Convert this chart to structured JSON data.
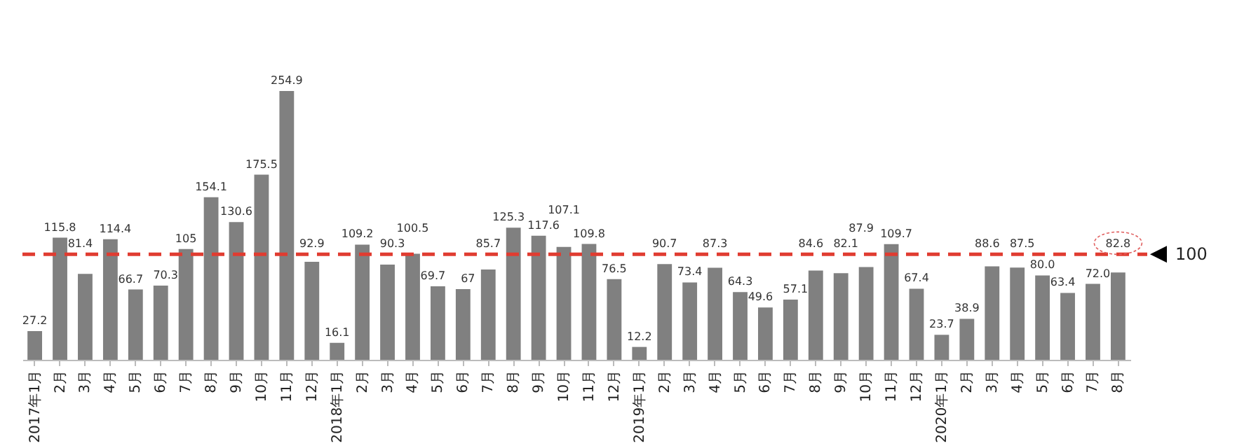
{
  "chart_data": {
    "type": "bar",
    "categories": [
      "2017年1月",
      "2月",
      "3月",
      "4月",
      "5月",
      "6月",
      "7月",
      "8月",
      "9月",
      "10月",
      "11月",
      "12月",
      "2018年1月",
      "2月",
      "3月",
      "4月",
      "5月",
      "6月",
      "7月",
      "8月",
      "9月",
      "10月",
      "11月",
      "12月",
      "2019年1月",
      "2月",
      "3月",
      "4月",
      "5月",
      "6月",
      "7月",
      "8月",
      "9月",
      "10月",
      "11月",
      "12月",
      "2020年1月",
      "2月",
      "3月",
      "4月",
      "5月",
      "6月",
      "7月",
      "8月"
    ],
    "values": [
      27.2,
      115.8,
      81.4,
      114.4,
      66.7,
      70.3,
      105,
      154.1,
      130.6,
      175.5,
      254.9,
      92.9,
      16.1,
      109.2,
      90.3,
      100.5,
      69.7,
      67,
      85.7,
      125.3,
      117.6,
      107.1,
      109.8,
      76.5,
      12.2,
      90.7,
      73.4,
      87.3,
      64.3,
      49.6,
      57.1,
      84.6,
      82.1,
      87.9,
      109.7,
      67.4,
      23.7,
      38.9,
      88.6,
      87.5,
      80.0,
      63.4,
      72.0,
      82.8
    ],
    "value_labels": [
      "27.2",
      "115.8",
      "81.4",
      "114.4",
      "66.7",
      "70.3",
      "105",
      "154.1",
      "130.6",
      "175.5",
      "254.9",
      "92.9",
      "16.1",
      "109.2",
      "90.3",
      "100.5",
      "69.7",
      "67",
      "85.7",
      "125.3",
      "117.6",
      "107.1",
      "109.8",
      "76.5",
      "12.2",
      "90.7",
      "73.4",
      "87.3",
      "64.3",
      "49.6",
      "57.1",
      "84.6",
      "82.1",
      "87.9",
      "109.7",
      "67.4",
      "23.7",
      "38.9",
      "88.6",
      "87.5",
      "80.0",
      "63.4",
      "72.0",
      "82.8"
    ],
    "color": "#808080",
    "ref_lines": [
      {
        "axis": "y",
        "value": 100,
        "label": "100",
        "color": "#e03c31",
        "line_style": "dashed"
      }
    ]
  }
}
